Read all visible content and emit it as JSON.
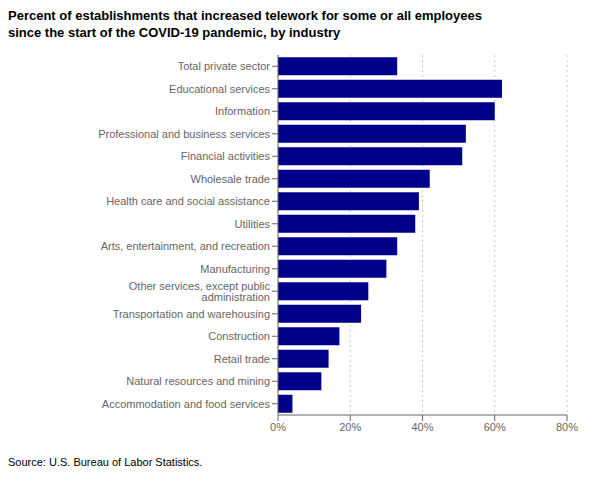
{
  "chart_data": {
    "type": "bar",
    "orientation": "horizontal",
    "title": "Percent of establishments that increased telework for some or all employees\nsince the start of the COVID-19 pandemic, by industry",
    "source": "Source: U.S. Bureau of Labor Statistics.",
    "categories": [
      "Accommodation and food services",
      "Natural resources and mining",
      "Retail trade",
      "Construction",
      "Transportation and warehousing",
      "Other services, except public administration",
      "Manufacturing",
      "Arts, entertainment, and recreation",
      "Utilities",
      "Health care and social assistance",
      "Wholesale trade",
      "Financial activities",
      "Professional and business services",
      "Information",
      "Educational services",
      "Total private sector"
    ],
    "values": [
      4,
      12,
      14,
      17,
      23,
      25,
      30,
      33,
      38,
      39,
      42,
      51,
      52,
      60,
      62,
      33
    ],
    "color": "#00008B",
    "xlim": [
      0,
      80
    ],
    "xticks": [
      {
        "value": 0,
        "label": "0%"
      },
      {
        "value": 20,
        "label": "20%"
      },
      {
        "value": 40,
        "label": "40%"
      },
      {
        "value": 60,
        "label": "60%"
      },
      {
        "value": 80,
        "label": "80%"
      }
    ],
    "grid": true
  }
}
